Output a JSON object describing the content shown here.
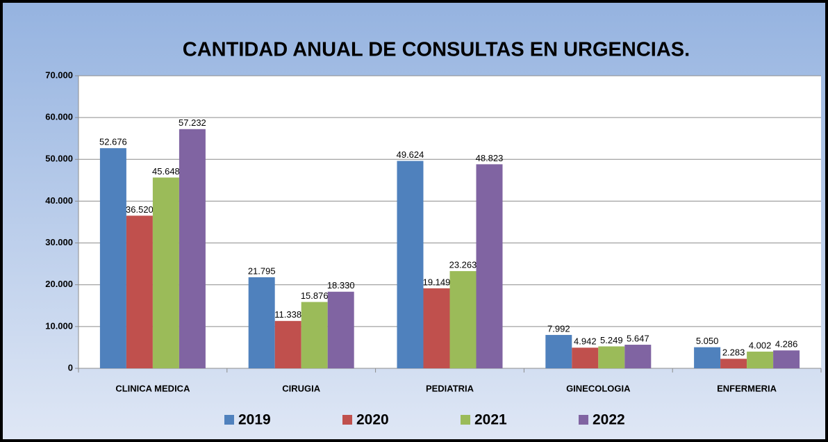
{
  "chart_data": {
    "type": "bar",
    "title": "CANTIDAD  ANUAL DE CONSULTAS EN URGENCIAS.",
    "categories": [
      "CLINICA MEDICA",
      "CIRUGIA",
      "PEDIATRIA",
      "GINECOLOGIA",
      "ENFERMERIA"
    ],
    "series": [
      {
        "name": "2019",
        "color": "#4f81bd",
        "values": [
          52676,
          21795,
          49624,
          7992,
          5050
        ],
        "value_labels": [
          "52.676",
          "21.795",
          "49.624",
          "7.992",
          "5.050"
        ]
      },
      {
        "name": "2020",
        "color": "#c0504d",
        "values": [
          36520,
          11338,
          19149,
          4942,
          2283
        ],
        "value_labels": [
          "36.520",
          "11.338",
          "19.149",
          "4.942",
          "2.283"
        ]
      },
      {
        "name": "2021",
        "color": "#9bbb59",
        "values": [
          45648,
          15876,
          23263,
          5249,
          4002
        ],
        "value_labels": [
          "45.648",
          "15.876",
          "23.263",
          "5.249",
          "4.002"
        ]
      },
      {
        "name": "2022",
        "color": "#8064a2",
        "values": [
          57232,
          18330,
          48823,
          5647,
          4286
        ],
        "value_labels": [
          "57.232",
          "18.330",
          "48.823",
          "5.647",
          "4.286"
        ]
      }
    ],
    "ylim": [
      0,
      70000
    ],
    "yticks": [
      0,
      {
        "value": 10000,
        "label": "10.000"
      },
      {
        "value": 20000,
        "label": "20.000"
      },
      {
        "value": 30000,
        "label": "30.000"
      },
      {
        "value": 40000,
        "label": "40.000"
      },
      {
        "value": 50000,
        "label": "50.000"
      },
      {
        "value": 60000,
        "label": "60.000"
      },
      {
        "value": 70000,
        "label": "70.000"
      }
    ],
    "grid": true,
    "legend": "bottom"
  }
}
